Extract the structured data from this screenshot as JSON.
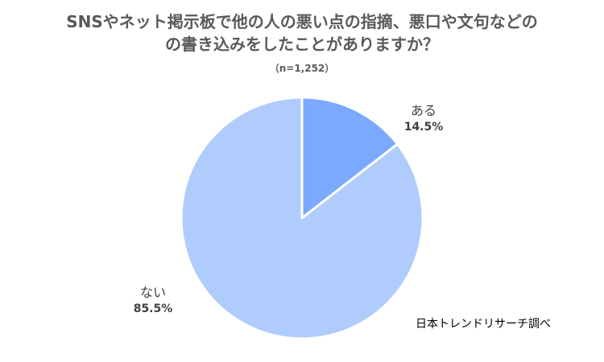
{
  "chart_data": {
    "type": "pie",
    "title_line1": "SNSやネット掲示板で他の人の悪い点の指摘、悪口や文句などの",
    "title_line2": "の書き込みをしたことがありますか？",
    "subtitle": "（n=1,252）",
    "slices": [
      {
        "label": "ある",
        "value": 14.5,
        "value_label": "14.5%",
        "color": "#7aa9ff"
      },
      {
        "label": "ない",
        "value": 85.5,
        "value_label": "85.5%",
        "color": "#b0ccfc"
      }
    ],
    "source": "日本トレンドリサーチ調べ"
  }
}
